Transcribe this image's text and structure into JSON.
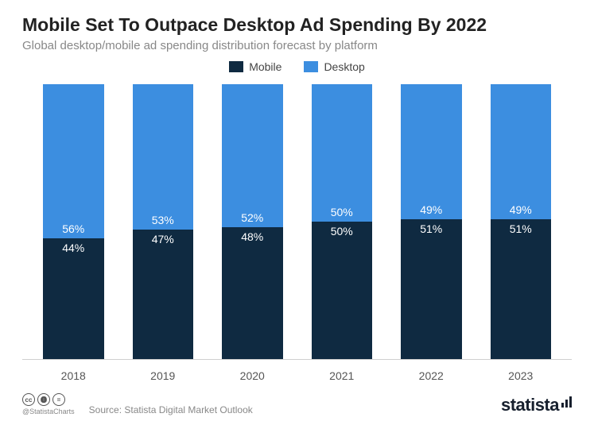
{
  "title": "Mobile Set To Outpace Desktop Ad Spending By 2022",
  "subtitle": "Global desktop/mobile ad spending distribution forecast by platform",
  "title_fontsize": 23,
  "subtitle_fontsize": 15,
  "legend": [
    {
      "label": "Mobile",
      "color": "#0f2a41"
    },
    {
      "label": "Desktop",
      "color": "#3c8ee0"
    }
  ],
  "chart": {
    "type": "stacked-bar-100",
    "categories": [
      "2018",
      "2019",
      "2020",
      "2021",
      "2022",
      "2023"
    ],
    "series": {
      "mobile": [
        44,
        47,
        48,
        50,
        51,
        51
      ],
      "desktop": [
        56,
        53,
        52,
        50,
        49,
        49
      ]
    },
    "mobile_labels": [
      "44%",
      "47%",
      "48%",
      "50%",
      "51%",
      "51%"
    ],
    "desktop_labels": [
      "56%",
      "53%",
      "52%",
      "50%",
      "49%",
      "49%"
    ],
    "colors": {
      "mobile": "#0f2a41",
      "desktop": "#3c8ee0"
    },
    "label_color": "#ffffff",
    "label_fontsize": 14,
    "xaxis_fontsize": 14,
    "bar_width_pct": 68,
    "background_color": "#ffffff",
    "axis_line_color": "#d0d0d0"
  },
  "footer": {
    "cc_icons": [
      "cc",
      "by",
      "nd"
    ],
    "handle": "@StatistaCharts",
    "source": "Source: Statista Digital Market Outlook",
    "brand": "statista"
  }
}
